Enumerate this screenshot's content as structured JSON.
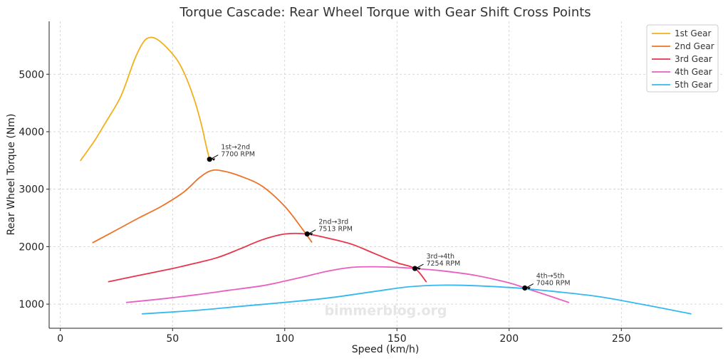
{
  "chart_data": {
    "type": "line",
    "title": "Torque Cascade: Rear Wheel Torque with Gear Shift Cross Points",
    "xlabel": "Speed (km/h)",
    "ylabel": "Rear Wheel Torque (Nm)",
    "xlim": [
      -5,
      295
    ],
    "ylim": [
      580,
      5920
    ],
    "xticks": [
      0,
      50,
      100,
      150,
      200,
      250
    ],
    "yticks": [
      1000,
      2000,
      3000,
      4000,
      5000
    ],
    "grid": true,
    "legend_position": "top-right",
    "watermark": "bimmerblog.org",
    "series": [
      {
        "name": "1st Gear",
        "color": "#f2b01e",
        "x": [
          9,
          15,
          20,
          27,
          33,
          37,
          40,
          43,
          47,
          52,
          56,
          60,
          63,
          65,
          66.5
        ],
        "y": [
          3500,
          3830,
          4150,
          4620,
          5250,
          5560,
          5640,
          5610,
          5480,
          5250,
          4950,
          4520,
          4100,
          3750,
          3520
        ]
      },
      {
        "name": "2nd Gear",
        "color": "#ee7326",
        "x": [
          14.5,
          25,
          35,
          45,
          55,
          62,
          67,
          72,
          80,
          90,
          100,
          108,
          112
        ],
        "y": [
          2070,
          2290,
          2500,
          2700,
          2950,
          3200,
          3320,
          3320,
          3230,
          3050,
          2700,
          2300,
          2080
        ]
      },
      {
        "name": "3rd Gear",
        "color": "#ea334b",
        "x": [
          21.5,
          35,
          50,
          60,
          70,
          80,
          90,
          100,
          110,
          120,
          130,
          140,
          150,
          158,
          163
        ],
        "y": [
          1390,
          1500,
          1620,
          1710,
          1810,
          1960,
          2120,
          2220,
          2220,
          2140,
          2040,
          1880,
          1720,
          1620,
          1390
        ]
      },
      {
        "name": "4th Gear",
        "color": "#e95ec0",
        "x": [
          29.5,
          45,
          60,
          75,
          90,
          100,
          110,
          120,
          130,
          140,
          150,
          158,
          170,
          185,
          200,
          207,
          215,
          226.5
        ],
        "y": [
          1030,
          1090,
          1160,
          1240,
          1320,
          1400,
          1490,
          1580,
          1640,
          1650,
          1640,
          1620,
          1580,
          1500,
          1370,
          1280,
          1180,
          1030
        ]
      },
      {
        "name": "5th Gear",
        "color": "#35b8f0",
        "x": [
          36.5,
          60,
          80,
          100,
          120,
          140,
          155,
          170,
          185,
          200,
          207,
          220,
          240,
          260,
          281
        ],
        "y": [
          830,
          890,
          960,
          1030,
          1110,
          1220,
          1300,
          1330,
          1320,
          1290,
          1270,
          1220,
          1130,
          990,
          830
        ]
      }
    ],
    "cross_points": [
      {
        "label": "1st→2nd",
        "rpm": "7700 RPM",
        "x": 66.5,
        "y": 3520
      },
      {
        "label": "2nd→3rd",
        "rpm": "7513 RPM",
        "x": 110,
        "y": 2220
      },
      {
        "label": "3rd→4th",
        "rpm": "7254 RPM",
        "x": 158,
        "y": 1620
      },
      {
        "label": "4th→5th",
        "rpm": "7040 RPM",
        "x": 207,
        "y": 1280
      }
    ]
  }
}
